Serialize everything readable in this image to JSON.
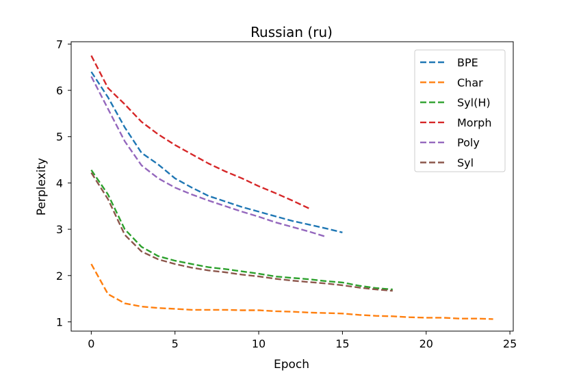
{
  "chart_data": {
    "type": "line",
    "title": "Russian (ru)",
    "xlabel": "Epoch",
    "ylabel": "Perplexity",
    "xlim": [
      -1.2,
      25.2
    ],
    "ylim": [
      0.8,
      7.05
    ],
    "xticks": [
      0,
      5,
      10,
      15,
      20,
      25
    ],
    "yticks": [
      1,
      2,
      3,
      4,
      5,
      6,
      7
    ],
    "grid": false,
    "legend_position": "top-right",
    "line_style": "dashed",
    "series": [
      {
        "name": "BPE",
        "color": "#1f77b4",
        "x": [
          0,
          1,
          2,
          3,
          4,
          5,
          6,
          7,
          8,
          9,
          10,
          11,
          12,
          13,
          14,
          15
        ],
        "y": [
          6.4,
          5.85,
          5.2,
          4.65,
          4.4,
          4.1,
          3.9,
          3.72,
          3.6,
          3.48,
          3.38,
          3.28,
          3.18,
          3.1,
          3.02,
          2.93
        ]
      },
      {
        "name": "Char",
        "color": "#ff7f0e",
        "x": [
          0,
          1,
          2,
          3,
          4,
          5,
          6,
          7,
          8,
          9,
          10,
          11,
          12,
          13,
          14,
          15,
          16,
          17,
          18,
          19,
          20,
          21,
          22,
          23,
          24
        ],
        "y": [
          2.25,
          1.6,
          1.4,
          1.33,
          1.3,
          1.28,
          1.26,
          1.26,
          1.26,
          1.25,
          1.25,
          1.23,
          1.22,
          1.2,
          1.19,
          1.18,
          1.15,
          1.13,
          1.12,
          1.1,
          1.09,
          1.09,
          1.07,
          1.07,
          1.06
        ]
      },
      {
        "name": "Syl(H)",
        "color": "#2ca02c",
        "x": [
          0,
          1,
          2,
          3,
          4,
          5,
          6,
          7,
          8,
          9,
          10,
          11,
          12,
          13,
          14,
          15,
          16,
          17,
          18
        ],
        "y": [
          4.28,
          3.75,
          3.0,
          2.62,
          2.42,
          2.32,
          2.25,
          2.18,
          2.14,
          2.09,
          2.04,
          1.98,
          1.95,
          1.92,
          1.88,
          1.85,
          1.78,
          1.73,
          1.7
        ]
      },
      {
        "name": "Morph",
        "color": "#d62728",
        "x": [
          0,
          1,
          2,
          3,
          4,
          5,
          6,
          7,
          8,
          9,
          10,
          11,
          12,
          13
        ],
        "y": [
          6.75,
          6.05,
          5.7,
          5.32,
          5.05,
          4.82,
          4.62,
          4.42,
          4.25,
          4.1,
          3.93,
          3.78,
          3.62,
          3.45
        ]
      },
      {
        "name": "Poly",
        "color": "#9467bd",
        "x": [
          0,
          1,
          2,
          3,
          4,
          5,
          6,
          7,
          8,
          9,
          10,
          11,
          12,
          13,
          14
        ],
        "y": [
          6.3,
          5.6,
          4.9,
          4.38,
          4.1,
          3.9,
          3.75,
          3.62,
          3.5,
          3.38,
          3.27,
          3.15,
          3.05,
          2.95,
          2.84
        ]
      },
      {
        "name": "Syl",
        "color": "#8c564b",
        "x": [
          0,
          1,
          2,
          3,
          4,
          5,
          6,
          7,
          8,
          9,
          10,
          11,
          12,
          13,
          14,
          15,
          16,
          17,
          18
        ],
        "y": [
          4.22,
          3.65,
          2.88,
          2.52,
          2.35,
          2.25,
          2.17,
          2.11,
          2.07,
          2.02,
          1.98,
          1.93,
          1.89,
          1.86,
          1.83,
          1.79,
          1.74,
          1.7,
          1.67
        ]
      }
    ]
  }
}
